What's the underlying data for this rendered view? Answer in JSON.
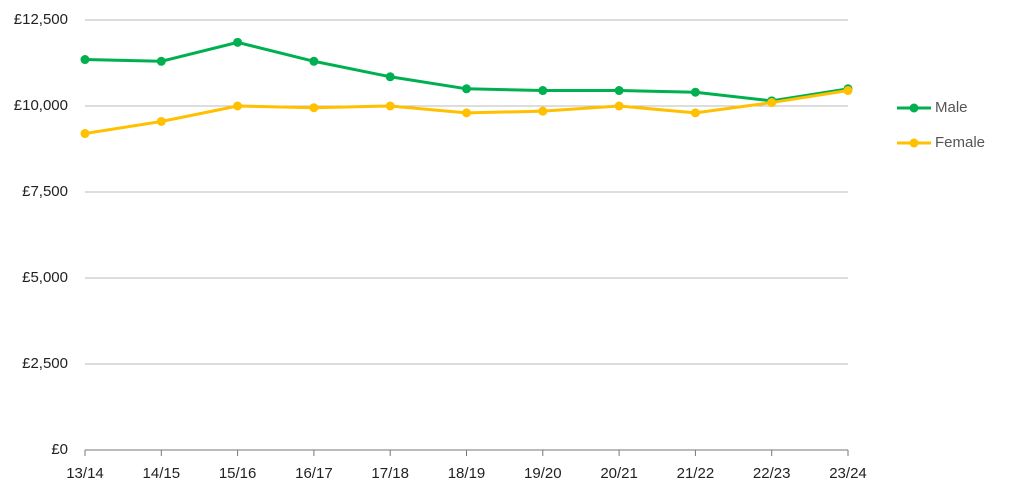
{
  "chart_data": {
    "type": "line",
    "categories": [
      "13/14",
      "14/15",
      "15/16",
      "16/17",
      "17/18",
      "18/19",
      "19/20",
      "20/21",
      "21/22",
      "22/23",
      "23/24"
    ],
    "series": [
      {
        "name": "Male",
        "color": "#00b050",
        "values": [
          11350,
          11300,
          11850,
          11300,
          10850,
          10500,
          10450,
          10450,
          10400,
          10150,
          10500
        ]
      },
      {
        "name": "Female",
        "color": "#ffc000",
        "values": [
          9200,
          9550,
          10000,
          9950,
          10000,
          9800,
          9850,
          10000,
          9800,
          10100,
          10450
        ]
      }
    ],
    "ylim": [
      0,
      12500
    ],
    "yticks": [
      {
        "value": 0,
        "label": "£0"
      },
      {
        "value": 2500,
        "label": "£2,500"
      },
      {
        "value": 5000,
        "label": "£5,000"
      },
      {
        "value": 7500,
        "label": "£7,500"
      },
      {
        "value": 10000,
        "label": "£10,000"
      },
      {
        "value": 12500,
        "label": "£12,500"
      }
    ],
    "grid": true,
    "legend": "right"
  }
}
